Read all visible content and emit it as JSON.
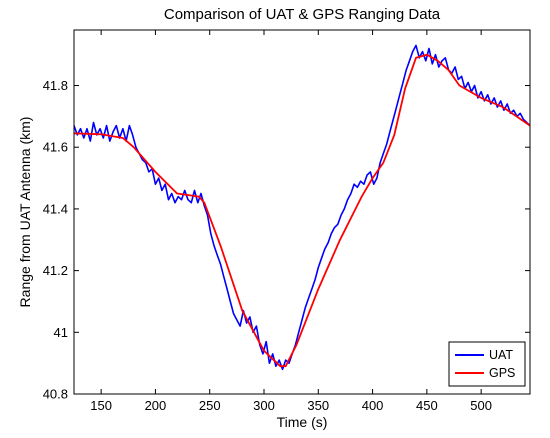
{
  "chart_data": {
    "type": "line",
    "title": "Comparison of UAT & GPS Ranging Data",
    "xlabel": "Time (s)",
    "ylabel": "Range from UAT Antenna (km)",
    "xlim": [
      125,
      545
    ],
    "ylim": [
      40.8,
      41.98
    ],
    "x_ticks": [
      150,
      200,
      250,
      300,
      350,
      400,
      450,
      500
    ],
    "y_ticks": [
      40.8,
      41,
      41.2,
      41.4,
      41.6,
      41.8
    ],
    "y_tick_labels": [
      "40.8",
      "41",
      "41.2",
      "41.4",
      "41.6",
      "41.8"
    ],
    "grid": false,
    "legend_position": "bottom-right",
    "series": [
      {
        "name": "UAT",
        "color": "#0000ff",
        "x": [
          125,
          128,
          131,
          134,
          137,
          140,
          143,
          146,
          149,
          152,
          155,
          158,
          161,
          164,
          167,
          170,
          173,
          176,
          179,
          182,
          185,
          188,
          191,
          194,
          197,
          200,
          203,
          206,
          209,
          212,
          215,
          218,
          221,
          224,
          227,
          230,
          233,
          236,
          239,
          242,
          245,
          248,
          251,
          254,
          257,
          260,
          263,
          266,
          269,
          272,
          275,
          278,
          281,
          284,
          287,
          290,
          293,
          296,
          299,
          302,
          305,
          308,
          311,
          314,
          317,
          320,
          323,
          326,
          329,
          332,
          335,
          338,
          341,
          344,
          347,
          350,
          353,
          356,
          359,
          362,
          365,
          368,
          371,
          374,
          377,
          380,
          383,
          386,
          389,
          392,
          395,
          398,
          401,
          404,
          407,
          410,
          413,
          416,
          419,
          422,
          425,
          428,
          431,
          434,
          437,
          440,
          443,
          446,
          449,
          452,
          455,
          458,
          461,
          464,
          467,
          470,
          473,
          476,
          479,
          482,
          485,
          488,
          491,
          494,
          497,
          500,
          503,
          506,
          509,
          512,
          515,
          518,
          521,
          524,
          527,
          530,
          533,
          536,
          539,
          542,
          545
        ],
        "y": [
          41.67,
          41.64,
          41.66,
          41.63,
          41.66,
          41.62,
          41.68,
          41.64,
          41.66,
          41.63,
          41.67,
          41.62,
          41.65,
          41.67,
          41.63,
          41.66,
          41.62,
          41.67,
          41.64,
          41.6,
          41.58,
          41.56,
          41.55,
          41.52,
          41.53,
          41.48,
          41.5,
          41.46,
          41.48,
          41.43,
          41.45,
          41.42,
          41.44,
          41.43,
          41.46,
          41.43,
          41.42,
          41.46,
          41.42,
          41.45,
          41.41,
          41.38,
          41.32,
          41.28,
          41.25,
          41.22,
          41.18,
          41.14,
          41.1,
          41.06,
          41.04,
          41.02,
          41.07,
          41.03,
          41.05,
          41.0,
          41.02,
          40.96,
          40.93,
          40.97,
          40.9,
          40.93,
          40.89,
          40.91,
          40.88,
          40.91,
          40.9,
          40.93,
          40.96,
          41.0,
          41.04,
          41.08,
          41.11,
          41.14,
          41.17,
          41.21,
          41.24,
          41.27,
          41.29,
          41.32,
          41.34,
          41.35,
          41.38,
          41.4,
          41.43,
          41.45,
          41.48,
          41.47,
          41.49,
          41.48,
          41.51,
          41.52,
          41.48,
          41.5,
          41.55,
          41.58,
          41.61,
          41.65,
          41.69,
          41.73,
          41.77,
          41.81,
          41.85,
          41.88,
          41.91,
          41.93,
          41.89,
          41.91,
          41.88,
          41.92,
          41.87,
          41.9,
          41.86,
          41.88,
          41.89,
          41.85,
          41.84,
          41.86,
          41.82,
          41.83,
          41.79,
          41.81,
          41.78,
          41.8,
          41.76,
          41.78,
          41.75,
          41.77,
          41.74,
          41.76,
          41.73,
          41.75,
          41.72,
          41.74,
          41.71,
          41.72,
          41.7,
          41.71,
          41.69,
          41.68,
          41.67
        ]
      },
      {
        "name": "GPS",
        "color": "#ff0000",
        "x": [
          125,
          150,
          170,
          180,
          200,
          220,
          240,
          245,
          260,
          280,
          300,
          315,
          320,
          330,
          350,
          370,
          390,
          400,
          410,
          420,
          430,
          440,
          450,
          460,
          470,
          480,
          500,
          520,
          545
        ],
        "y": [
          41.645,
          41.642,
          41.63,
          41.6,
          41.52,
          41.45,
          41.44,
          41.42,
          41.28,
          41.07,
          40.94,
          40.89,
          40.89,
          40.96,
          41.14,
          41.3,
          41.44,
          41.5,
          41.55,
          41.64,
          41.79,
          41.89,
          41.9,
          41.88,
          41.85,
          41.8,
          41.76,
          41.73,
          41.67
        ]
      }
    ]
  }
}
